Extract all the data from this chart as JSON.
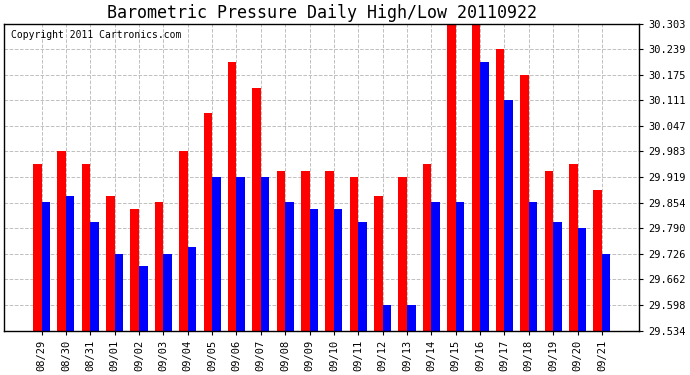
{
  "title": "Barometric Pressure Daily High/Low 20110922",
  "copyright": "Copyright 2011 Cartronics.com",
  "dates": [
    "08/29",
    "08/30",
    "08/31",
    "09/01",
    "09/02",
    "09/03",
    "09/04",
    "09/05",
    "09/06",
    "09/07",
    "09/08",
    "09/09",
    "09/10",
    "09/11",
    "09/12",
    "09/13",
    "09/14",
    "09/15",
    "09/16",
    "09/17",
    "09/18",
    "09/19",
    "09/20",
    "09/21"
  ],
  "highs": [
    29.951,
    29.983,
    29.951,
    29.871,
    29.839,
    29.855,
    29.983,
    30.079,
    30.207,
    30.143,
    29.935,
    29.935,
    29.935,
    29.919,
    29.871,
    29.919,
    29.951,
    30.303,
    30.303,
    30.239,
    30.175,
    29.935,
    29.951,
    29.887
  ],
  "lows": [
    29.855,
    29.871,
    29.807,
    29.726,
    29.695,
    29.726,
    29.743,
    29.919,
    29.919,
    29.919,
    29.855,
    29.839,
    29.839,
    29.807,
    29.598,
    29.598,
    29.855,
    29.855,
    30.207,
    30.111,
    29.855,
    29.807,
    29.79,
    29.726
  ],
  "bar_color_high": "#ff0000",
  "bar_color_low": "#0000ff",
  "background_color": "#ffffff",
  "plot_bg_color": "#ffffff",
  "grid_color": "#c0c0c0",
  "yticks": [
    29.534,
    29.598,
    29.662,
    29.726,
    29.79,
    29.854,
    29.919,
    29.983,
    30.047,
    30.111,
    30.175,
    30.239,
    30.303
  ],
  "ylim": [
    29.534,
    30.303
  ],
  "title_fontsize": 12,
  "tick_fontsize": 7.5,
  "copyright_fontsize": 7,
  "bar_width": 0.35
}
